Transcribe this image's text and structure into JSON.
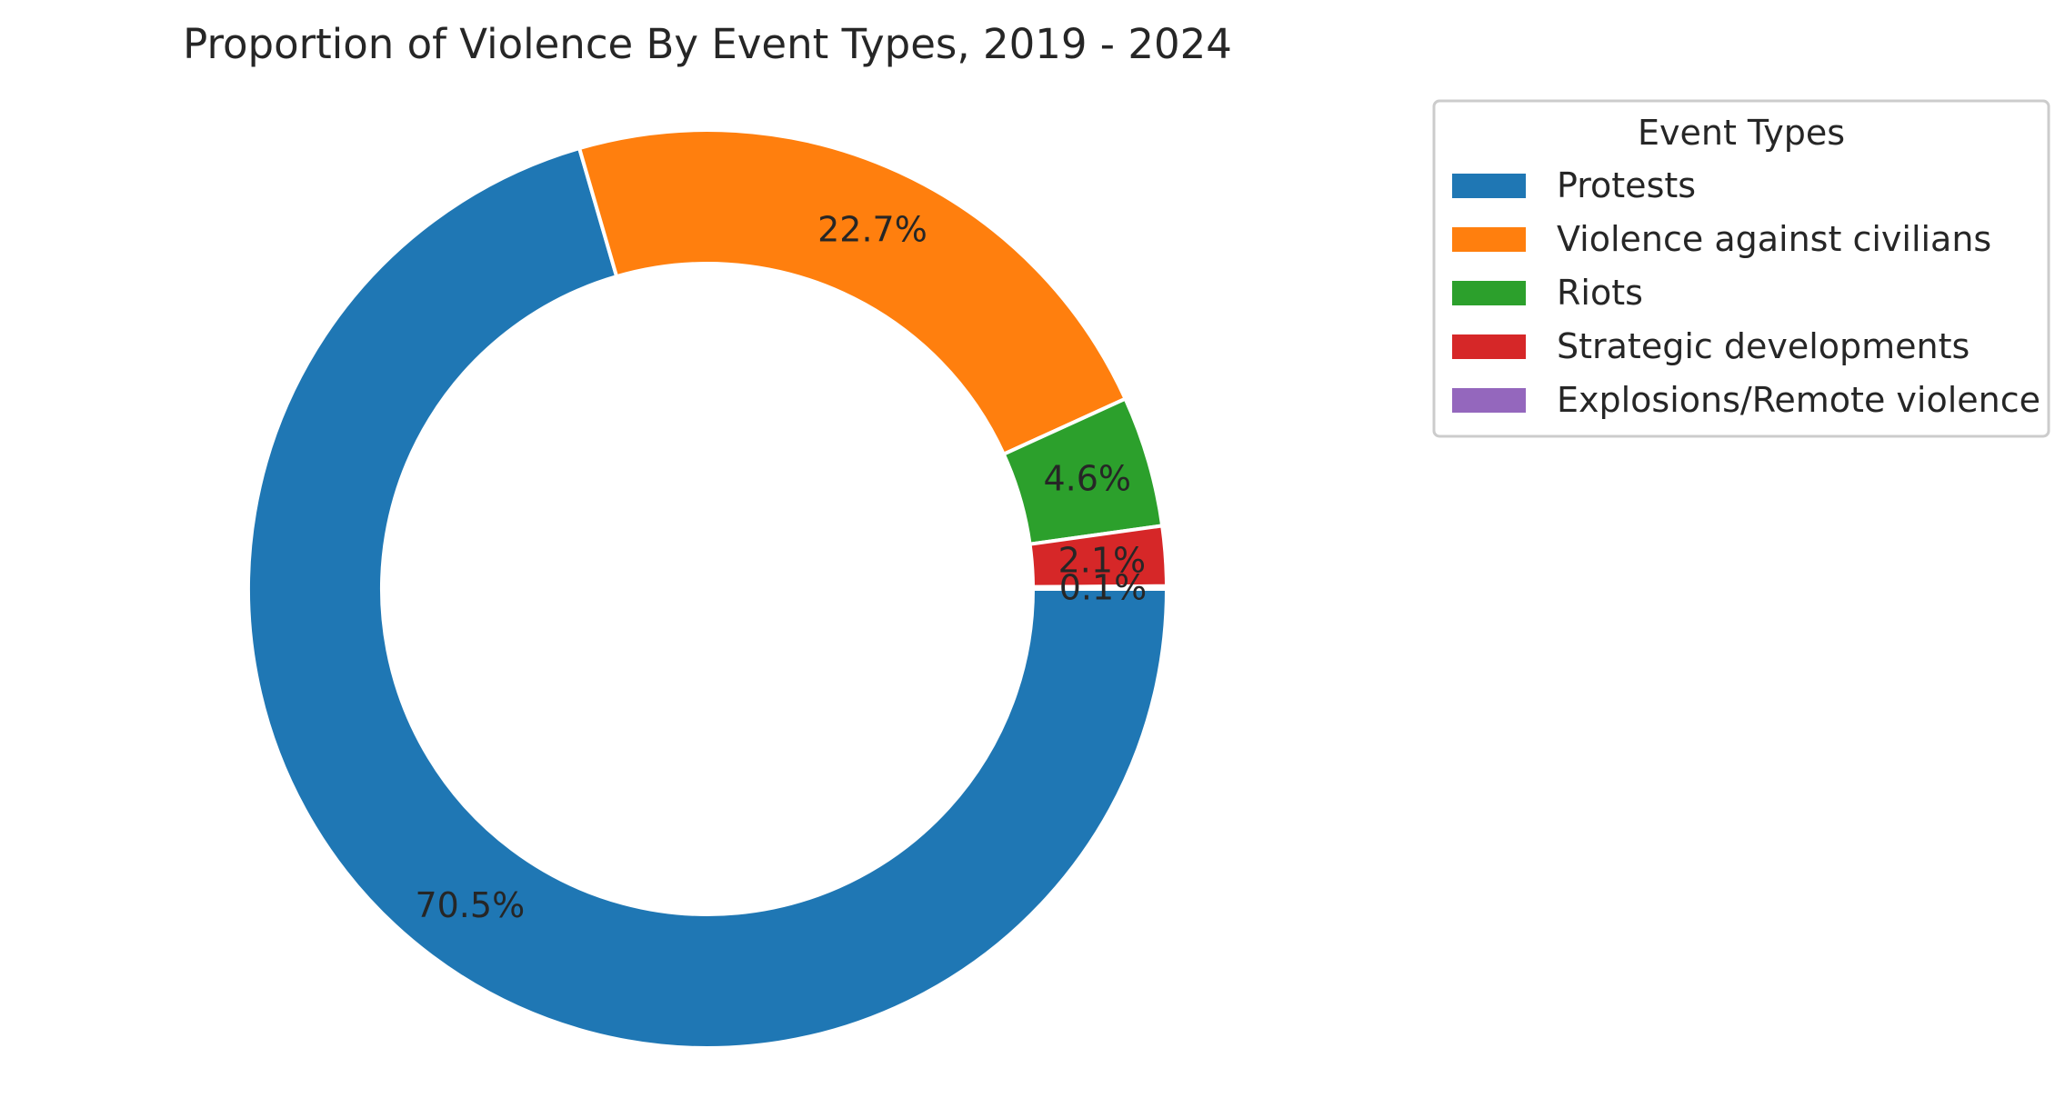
{
  "chart_data": {
    "type": "pie",
    "title": "Proportion of Violence By Event Types, 2019 - 2024",
    "legend_title": "Event Types",
    "legend_position": "top-right",
    "donut": true,
    "slices": [
      {
        "label": "Protests",
        "value": 70.5,
        "pct_label": "70.5%",
        "color": "#1f77b4"
      },
      {
        "label": "Violence against civilians",
        "value": 22.7,
        "pct_label": "22.7%",
        "color": "#ff7f0e"
      },
      {
        "label": "Riots",
        "value": 4.6,
        "pct_label": "4.6%",
        "color": "#2ca02c"
      },
      {
        "label": "Strategic developments",
        "value": 2.1,
        "pct_label": "2.1%",
        "color": "#d62728"
      },
      {
        "label": "Explosions/Remote violence",
        "value": 0.1,
        "pct_label": "0.1%",
        "color": "#9467bd"
      }
    ]
  }
}
